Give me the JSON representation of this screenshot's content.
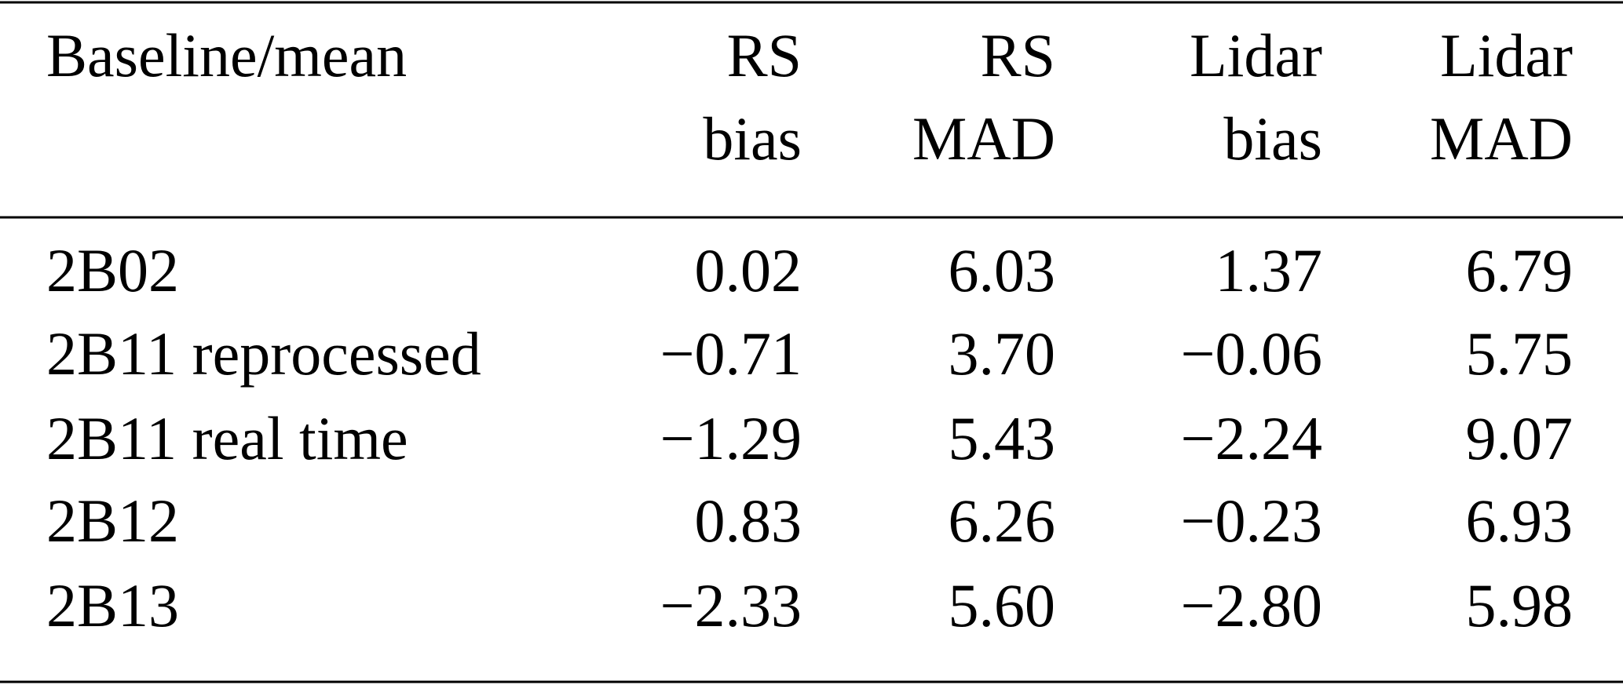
{
  "table": {
    "header": [
      [
        "Baseline/mean"
      ],
      [
        "RS",
        "bias"
      ],
      [
        "RS",
        "MAD"
      ],
      [
        "Lidar",
        "bias"
      ],
      [
        "Lidar",
        "MAD"
      ]
    ],
    "rows": [
      [
        "2B02",
        "0.02",
        "6.03",
        "1.37",
        "6.79"
      ],
      [
        "2B11 reprocessed",
        "−0.71",
        "3.70",
        "−0.06",
        "5.75"
      ],
      [
        "2B11 real time",
        "−1.29",
        "5.43",
        "−2.24",
        "9.07"
      ],
      [
        "2B12",
        "0.83",
        "6.26",
        "−0.23",
        "6.93"
      ],
      [
        "2B13",
        "−2.33",
        "5.60",
        "−2.80",
        "5.98"
      ]
    ]
  }
}
